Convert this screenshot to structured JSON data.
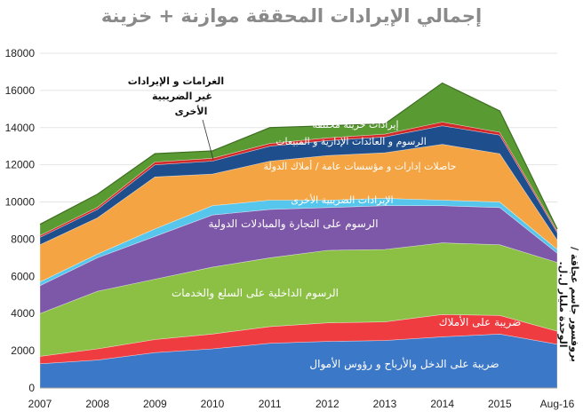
{
  "chart_data": {
    "type": "area",
    "title": "إجمالي الإيرادات المحققة موازنة + خزينة",
    "side_note": "بروفسور جاسم عجاقة / الوحدة مليار ل.ل.",
    "categories": [
      "2007",
      "2008",
      "2009",
      "2010",
      "2011",
      "2012",
      "2013",
      "2014",
      "2015",
      "Aug-16"
    ],
    "ylim": [
      0,
      18000
    ],
    "yticks": [
      0,
      2000,
      4000,
      6000,
      8000,
      10000,
      12000,
      14000,
      16000,
      18000
    ],
    "stacked": true,
    "series": [
      {
        "name": "ضريبة على الدخل والأرباح و رؤوس الأموال",
        "color": "#3c78c8",
        "values": [
          1300,
          1500,
          1900,
          2100,
          2400,
          2500,
          2550,
          2750,
          2900,
          2350
        ]
      },
      {
        "name": "ضريبة على الأملاك",
        "color": "#ee3c40",
        "values": [
          400,
          600,
          700,
          800,
          900,
          1000,
          1000,
          1200,
          1000,
          700
        ]
      },
      {
        "name": "الرسوم الداخلية على السلع والخدمات",
        "color": "#8cc044",
        "values": [
          2300,
          3100,
          3250,
          3600,
          3700,
          3900,
          3900,
          3850,
          3800,
          3700
        ]
      },
      {
        "name": "الرسوم على التجارة والمبادلات الدولية",
        "color": "#7e58a8",
        "values": [
          1500,
          1800,
          2300,
          2800,
          2600,
          2300,
          2350,
          2000,
          2000,
          500
        ]
      },
      {
        "name": "الإيرادات الضريبية الأخرى",
        "color": "#56c6ec",
        "values": [
          200,
          200,
          400,
          500,
          500,
          400,
          400,
          300,
          300,
          200
        ]
      },
      {
        "name": "حاصلات إدارات و مؤسسات عامة / أملاك الدولة",
        "color": "#f4a442",
        "values": [
          2000,
          1950,
          2800,
          1700,
          2100,
          2400,
          2450,
          3000,
          2600,
          500
        ]
      },
      {
        "name": "الرسوم و العائدات الإدارية و المبيعات",
        "color": "#1f4e8c",
        "values": [
          400,
          450,
          650,
          700,
          800,
          800,
          850,
          1000,
          1000,
          400
        ]
      },
      {
        "name": "الغرامات و الإيرادات غير الضريبية الأخرى",
        "color": "#d22a2a",
        "values": [
          100,
          120,
          150,
          150,
          150,
          150,
          150,
          200,
          150,
          100
        ]
      },
      {
        "name": "إيرادات خزينة مختلفة",
        "color": "#5a9a32",
        "values": [
          600,
          700,
          450,
          400,
          850,
          650,
          550,
          2100,
          1150,
          100
        ]
      }
    ],
    "annotations": [
      {
        "text": "ضريبة على الدخل والأرباح و رؤوس الأموال"
      },
      {
        "text": "ضريبة على الأملاك"
      },
      {
        "text": "الرسوم الداخلية على السلع والخدمات"
      },
      {
        "text": "الرسوم على التجارة والمبادلات الدولية"
      },
      {
        "text": "الإيرادات الضريبية الأخرى"
      },
      {
        "text": "حاصلات إدارات و مؤسسات عامة / أملاك الدولة"
      },
      {
        "text": "الرسوم و العائدات الإدارية و المبيعات"
      },
      {
        "text": "إيرادات خزينة مختلفة"
      },
      {
        "text": "الغرامات و الإيرادات"
      },
      {
        "text": "غير الضريبية"
      },
      {
        "text": "الأخرى"
      }
    ]
  }
}
